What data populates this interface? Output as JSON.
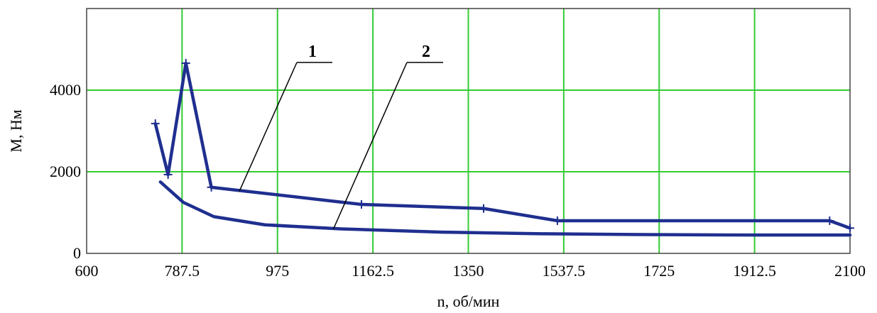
{
  "chart_data": {
    "type": "line",
    "xlabel": "n, об/мин",
    "ylabel": "M, Нм",
    "xlim": [
      600,
      2100
    ],
    "ylim": [
      0,
      6000
    ],
    "xticks": [
      600,
      787.5,
      975,
      1162.5,
      1350,
      1537.5,
      1725,
      1912.5,
      2100
    ],
    "xtick_labels": [
      "600",
      "787.5",
      "975",
      "1162.5",
      "1350",
      "1537.5",
      "1725",
      "1912.5",
      "2100"
    ],
    "yticks": [
      0,
      2000,
      4000
    ],
    "ytick_labels": [
      "0",
      "2000",
      "4000"
    ],
    "grid": true,
    "grid_color": "#33cc33",
    "series": [
      {
        "name": "1",
        "color": "#1f2f8f",
        "markers": true,
        "x": [
          735,
          760,
          795,
          845,
          1140,
          1380,
          1525,
          2060,
          2100
        ],
        "y": [
          3180,
          1930,
          4660,
          1620,
          1200,
          1100,
          800,
          800,
          620
        ]
      },
      {
        "name": "2",
        "color": "#1f2f8f",
        "markers": false,
        "x": [
          745,
          790,
          850,
          950,
          1100,
          1300,
          1500,
          1700,
          1900,
          2100
        ],
        "y": [
          1750,
          1250,
          900,
          700,
          600,
          520,
          480,
          460,
          450,
          450
        ]
      }
    ],
    "annotations": [
      {
        "label": "1",
        "series": 0,
        "leader_point_x": 900,
        "leader_point_y": 1520
      },
      {
        "label": "2",
        "series": 1,
        "leader_point_x": 1085,
        "leader_point_y": 600
      }
    ]
  }
}
